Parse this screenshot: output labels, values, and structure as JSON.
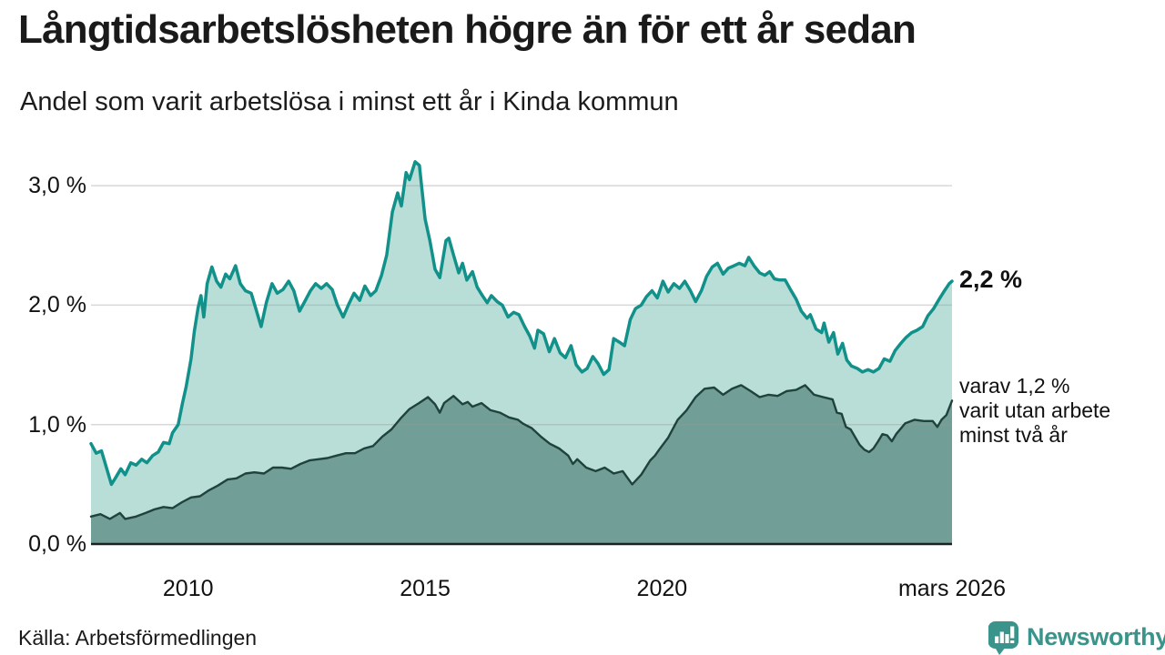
{
  "header": {
    "title": "Långtidsarbetslösheten högre än för ett år sedan",
    "subtitle": "Andel som varit arbetslösa i minst ett år i Kinda kommun"
  },
  "footer": {
    "source": "Källa: Arbetsförmedlingen",
    "brand": "Newsworthy"
  },
  "colors": {
    "brand_teal": "#3a948b",
    "text": "#1a1a1a",
    "grid": "#999999",
    "axis": "#1f1f1f"
  },
  "chart_data": {
    "type": "area",
    "title": "Långtidsarbetslösheten högre än för ett år sedan",
    "subtitle": "Andel som varit arbetslösa i minst ett år i Kinda kommun",
    "unit": "%",
    "grid": "horizontal",
    "x_range": [
      2007.95,
      2026.12
    ],
    "ylim": [
      0,
      3.3
    ],
    "x_axis": {
      "ticks": [
        {
          "label": "2010",
          "year": 2010
        },
        {
          "label": "2015",
          "year": 2015
        },
        {
          "label": "2020",
          "year": 2020
        },
        {
          "label": "mars 2026",
          "year": 2026.12
        }
      ]
    },
    "y_axis": {
      "ticks": [
        {
          "label": "0,0 %",
          "value": 0
        },
        {
          "label": "1,0 %",
          "value": 1
        },
        {
          "label": "2,0 %",
          "value": 2
        },
        {
          "label": "3,0 %",
          "value": 3
        }
      ]
    },
    "series": [
      {
        "name": "Andel arbetslösa minst ett år",
        "color": "#12918a",
        "fill": "#b9ded8",
        "line_width": 3.5,
        "end_value": 2.2,
        "end_label": "2,2 %",
        "points": [
          [
            2007.95,
            0.84
          ],
          [
            2008.06,
            0.76
          ],
          [
            2008.17,
            0.78
          ],
          [
            2008.29,
            0.62
          ],
          [
            2008.38,
            0.5
          ],
          [
            2008.46,
            0.55
          ],
          [
            2008.58,
            0.63
          ],
          [
            2008.67,
            0.58
          ],
          [
            2008.79,
            0.68
          ],
          [
            2008.9,
            0.66
          ],
          [
            2009.02,
            0.71
          ],
          [
            2009.13,
            0.68
          ],
          [
            2009.25,
            0.74
          ],
          [
            2009.37,
            0.77
          ],
          [
            2009.48,
            0.85
          ],
          [
            2009.6,
            0.84
          ],
          [
            2009.67,
            0.93
          ],
          [
            2009.79,
            1.0
          ],
          [
            2009.88,
            1.18
          ],
          [
            2009.96,
            1.32
          ],
          [
            2010.06,
            1.55
          ],
          [
            2010.13,
            1.78
          ],
          [
            2010.21,
            1.98
          ],
          [
            2010.27,
            2.08
          ],
          [
            2010.33,
            1.9
          ],
          [
            2010.4,
            2.18
          ],
          [
            2010.5,
            2.32
          ],
          [
            2010.6,
            2.2
          ],
          [
            2010.69,
            2.15
          ],
          [
            2010.79,
            2.26
          ],
          [
            2010.88,
            2.22
          ],
          [
            2011.0,
            2.33
          ],
          [
            2011.1,
            2.18
          ],
          [
            2011.21,
            2.12
          ],
          [
            2011.33,
            2.1
          ],
          [
            2011.42,
            1.98
          ],
          [
            2011.54,
            1.82
          ],
          [
            2011.65,
            2.02
          ],
          [
            2011.77,
            2.18
          ],
          [
            2011.88,
            2.1
          ],
          [
            2012.0,
            2.13
          ],
          [
            2012.12,
            2.2
          ],
          [
            2012.23,
            2.12
          ],
          [
            2012.35,
            1.95
          ],
          [
            2012.46,
            2.03
          ],
          [
            2012.58,
            2.12
          ],
          [
            2012.69,
            2.18
          ],
          [
            2012.81,
            2.14
          ],
          [
            2012.92,
            2.18
          ],
          [
            2013.04,
            2.13
          ],
          [
            2013.15,
            2.0
          ],
          [
            2013.27,
            1.9
          ],
          [
            2013.38,
            2.0
          ],
          [
            2013.5,
            2.1
          ],
          [
            2013.62,
            2.04
          ],
          [
            2013.73,
            2.16
          ],
          [
            2013.85,
            2.08
          ],
          [
            2013.96,
            2.12
          ],
          [
            2014.08,
            2.25
          ],
          [
            2014.19,
            2.42
          ],
          [
            2014.31,
            2.78
          ],
          [
            2014.42,
            2.94
          ],
          [
            2014.5,
            2.83
          ],
          [
            2014.6,
            3.11
          ],
          [
            2014.67,
            3.05
          ],
          [
            2014.79,
            3.2
          ],
          [
            2014.88,
            3.17
          ],
          [
            2015.0,
            2.72
          ],
          [
            2015.1,
            2.54
          ],
          [
            2015.21,
            2.3
          ],
          [
            2015.31,
            2.23
          ],
          [
            2015.44,
            2.54
          ],
          [
            2015.5,
            2.56
          ],
          [
            2015.6,
            2.42
          ],
          [
            2015.71,
            2.27
          ],
          [
            2015.79,
            2.35
          ],
          [
            2015.88,
            2.21
          ],
          [
            2016.0,
            2.28
          ],
          [
            2016.1,
            2.15
          ],
          [
            2016.21,
            2.08
          ],
          [
            2016.31,
            2.02
          ],
          [
            2016.4,
            2.08
          ],
          [
            2016.52,
            2.03
          ],
          [
            2016.63,
            2.0
          ],
          [
            2016.75,
            1.9
          ],
          [
            2016.87,
            1.94
          ],
          [
            2016.98,
            1.92
          ],
          [
            2017.1,
            1.82
          ],
          [
            2017.21,
            1.74
          ],
          [
            2017.31,
            1.64
          ],
          [
            2017.38,
            1.79
          ],
          [
            2017.5,
            1.76
          ],
          [
            2017.62,
            1.61
          ],
          [
            2017.73,
            1.72
          ],
          [
            2017.85,
            1.6
          ],
          [
            2017.96,
            1.56
          ],
          [
            2018.08,
            1.66
          ],
          [
            2018.19,
            1.5
          ],
          [
            2018.31,
            1.44
          ],
          [
            2018.42,
            1.47
          ],
          [
            2018.54,
            1.57
          ],
          [
            2018.65,
            1.51
          ],
          [
            2018.77,
            1.42
          ],
          [
            2018.88,
            1.46
          ],
          [
            2018.98,
            1.72
          ],
          [
            2019.1,
            1.69
          ],
          [
            2019.21,
            1.66
          ],
          [
            2019.33,
            1.88
          ],
          [
            2019.44,
            1.97
          ],
          [
            2019.56,
            2.0
          ],
          [
            2019.67,
            2.07
          ],
          [
            2019.79,
            2.12
          ],
          [
            2019.9,
            2.06
          ],
          [
            2020.02,
            2.2
          ],
          [
            2020.13,
            2.11
          ],
          [
            2020.25,
            2.18
          ],
          [
            2020.37,
            2.14
          ],
          [
            2020.48,
            2.2
          ],
          [
            2020.6,
            2.12
          ],
          [
            2020.71,
            2.03
          ],
          [
            2020.83,
            2.12
          ],
          [
            2020.94,
            2.24
          ],
          [
            2021.06,
            2.32
          ],
          [
            2021.17,
            2.35
          ],
          [
            2021.29,
            2.26
          ],
          [
            2021.4,
            2.31
          ],
          [
            2021.52,
            2.33
          ],
          [
            2021.63,
            2.35
          ],
          [
            2021.75,
            2.33
          ],
          [
            2021.83,
            2.4
          ],
          [
            2021.94,
            2.33
          ],
          [
            2022.06,
            2.27
          ],
          [
            2022.17,
            2.25
          ],
          [
            2022.27,
            2.28
          ],
          [
            2022.37,
            2.22
          ],
          [
            2022.48,
            2.21
          ],
          [
            2022.6,
            2.21
          ],
          [
            2022.71,
            2.13
          ],
          [
            2022.83,
            2.05
          ],
          [
            2022.94,
            1.95
          ],
          [
            2023.06,
            1.89
          ],
          [
            2023.13,
            1.92
          ],
          [
            2023.25,
            1.8
          ],
          [
            2023.37,
            1.77
          ],
          [
            2023.42,
            1.85
          ],
          [
            2023.52,
            1.69
          ],
          [
            2023.62,
            1.77
          ],
          [
            2023.71,
            1.59
          ],
          [
            2023.81,
            1.68
          ],
          [
            2023.9,
            1.54
          ],
          [
            2024.0,
            1.49
          ],
          [
            2024.12,
            1.47
          ],
          [
            2024.23,
            1.44
          ],
          [
            2024.35,
            1.46
          ],
          [
            2024.46,
            1.44
          ],
          [
            2024.58,
            1.47
          ],
          [
            2024.69,
            1.55
          ],
          [
            2024.81,
            1.53
          ],
          [
            2024.92,
            1.62
          ],
          [
            2025.04,
            1.68
          ],
          [
            2025.15,
            1.73
          ],
          [
            2025.27,
            1.77
          ],
          [
            2025.38,
            1.79
          ],
          [
            2025.5,
            1.82
          ],
          [
            2025.61,
            1.91
          ],
          [
            2025.73,
            1.97
          ],
          [
            2025.85,
            2.05
          ],
          [
            2025.96,
            2.12
          ],
          [
            2026.06,
            2.18
          ],
          [
            2026.12,
            2.2
          ]
        ]
      },
      {
        "name": "varav utan arbete minst två år",
        "color": "#1f423c",
        "fill": "#719e97",
        "line_width": 2.4,
        "end_value": 1.2,
        "end_label": "varav 1,2 %\nvarit utan arbete\nminst två år",
        "points": [
          [
            2007.95,
            0.23
          ],
          [
            2008.15,
            0.25
          ],
          [
            2008.35,
            0.21
          ],
          [
            2008.56,
            0.26
          ],
          [
            2008.67,
            0.21
          ],
          [
            2008.9,
            0.23
          ],
          [
            2009.1,
            0.26
          ],
          [
            2009.29,
            0.29
          ],
          [
            2009.48,
            0.31
          ],
          [
            2009.67,
            0.3
          ],
          [
            2009.87,
            0.35
          ],
          [
            2010.06,
            0.39
          ],
          [
            2010.25,
            0.4
          ],
          [
            2010.44,
            0.45
          ],
          [
            2010.63,
            0.49
          ],
          [
            2010.83,
            0.54
          ],
          [
            2011.02,
            0.55
          ],
          [
            2011.21,
            0.59
          ],
          [
            2011.4,
            0.6
          ],
          [
            2011.6,
            0.59
          ],
          [
            2011.79,
            0.64
          ],
          [
            2011.98,
            0.64
          ],
          [
            2012.17,
            0.63
          ],
          [
            2012.37,
            0.67
          ],
          [
            2012.56,
            0.7
          ],
          [
            2012.75,
            0.71
          ],
          [
            2012.94,
            0.72
          ],
          [
            2013.13,
            0.74
          ],
          [
            2013.33,
            0.76
          ],
          [
            2013.52,
            0.76
          ],
          [
            2013.71,
            0.8
          ],
          [
            2013.9,
            0.82
          ],
          [
            2014.1,
            0.9
          ],
          [
            2014.29,
            0.96
          ],
          [
            2014.48,
            1.05
          ],
          [
            2014.67,
            1.13
          ],
          [
            2014.87,
            1.18
          ],
          [
            2015.06,
            1.23
          ],
          [
            2015.21,
            1.17
          ],
          [
            2015.31,
            1.1
          ],
          [
            2015.4,
            1.18
          ],
          [
            2015.6,
            1.24
          ],
          [
            2015.79,
            1.17
          ],
          [
            2015.9,
            1.19
          ],
          [
            2016.0,
            1.15
          ],
          [
            2016.19,
            1.18
          ],
          [
            2016.38,
            1.12
          ],
          [
            2016.58,
            1.1
          ],
          [
            2016.77,
            1.06
          ],
          [
            2016.96,
            1.04
          ],
          [
            2017.06,
            1.01
          ],
          [
            2017.15,
            0.99
          ],
          [
            2017.25,
            0.97
          ],
          [
            2017.44,
            0.9
          ],
          [
            2017.63,
            0.84
          ],
          [
            2017.83,
            0.8
          ],
          [
            2018.02,
            0.74
          ],
          [
            2018.12,
            0.67
          ],
          [
            2018.21,
            0.71
          ],
          [
            2018.4,
            0.64
          ],
          [
            2018.6,
            0.61
          ],
          [
            2018.79,
            0.64
          ],
          [
            2018.98,
            0.59
          ],
          [
            2019.17,
            0.61
          ],
          [
            2019.37,
            0.5
          ],
          [
            2019.56,
            0.58
          ],
          [
            2019.75,
            0.7
          ],
          [
            2019.85,
            0.74
          ],
          [
            2019.94,
            0.79
          ],
          [
            2020.13,
            0.89
          ],
          [
            2020.33,
            1.04
          ],
          [
            2020.52,
            1.12
          ],
          [
            2020.71,
            1.23
          ],
          [
            2020.9,
            1.3
          ],
          [
            2021.1,
            1.31
          ],
          [
            2021.29,
            1.25
          ],
          [
            2021.48,
            1.3
          ],
          [
            2021.67,
            1.33
          ],
          [
            2021.87,
            1.28
          ],
          [
            2022.06,
            1.23
          ],
          [
            2022.25,
            1.25
          ],
          [
            2022.44,
            1.24
          ],
          [
            2022.63,
            1.28
          ],
          [
            2022.83,
            1.29
          ],
          [
            2023.02,
            1.33
          ],
          [
            2023.21,
            1.25
          ],
          [
            2023.4,
            1.23
          ],
          [
            2023.6,
            1.21
          ],
          [
            2023.69,
            1.1
          ],
          [
            2023.79,
            1.09
          ],
          [
            2023.88,
            0.98
          ],
          [
            2023.98,
            0.96
          ],
          [
            2024.17,
            0.83
          ],
          [
            2024.27,
            0.79
          ],
          [
            2024.37,
            0.77
          ],
          [
            2024.46,
            0.8
          ],
          [
            2024.56,
            0.86
          ],
          [
            2024.65,
            0.92
          ],
          [
            2024.75,
            0.91
          ],
          [
            2024.85,
            0.86
          ],
          [
            2024.94,
            0.92
          ],
          [
            2025.13,
            1.01
          ],
          [
            2025.33,
            1.04
          ],
          [
            2025.52,
            1.03
          ],
          [
            2025.71,
            1.03
          ],
          [
            2025.81,
            0.98
          ],
          [
            2025.9,
            1.04
          ],
          [
            2026.0,
            1.08
          ],
          [
            2026.06,
            1.14
          ],
          [
            2026.12,
            1.2
          ]
        ]
      }
    ]
  }
}
